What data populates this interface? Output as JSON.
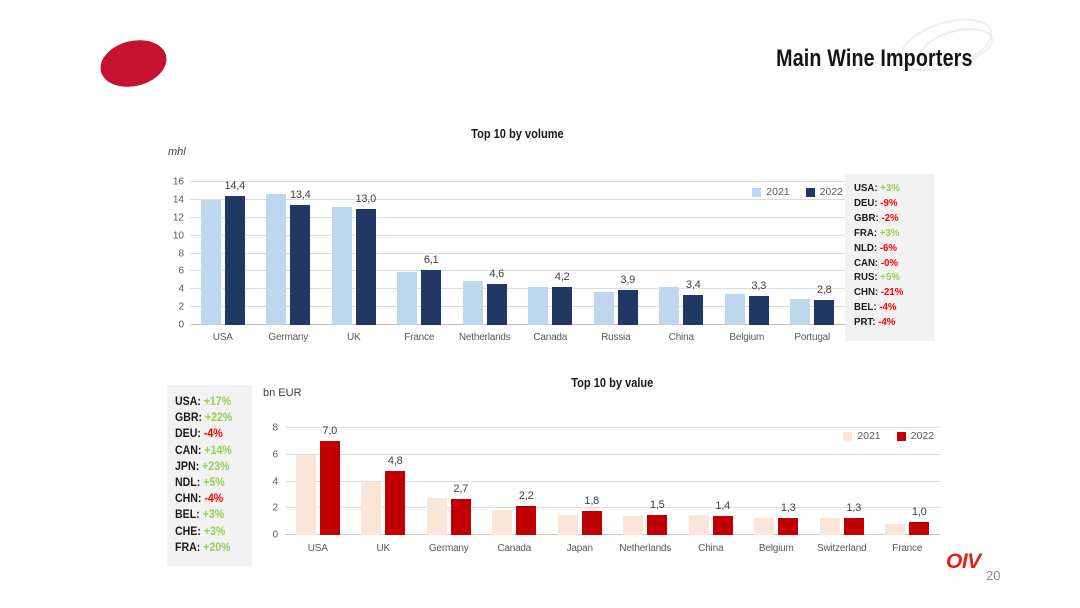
{
  "slide": {
    "title": "Main Wine Importers",
    "logo_text": "OIV",
    "page_number": "20"
  },
  "colors": {
    "ellipse_red": "#C41231",
    "oiv_red": "#E3231B",
    "panel_bg": "#F2F2F2",
    "positive_green": "#92D050",
    "negative_red": "#FF0000",
    "volume_2021": "#BDD7EE",
    "volume_2022": "#1F3864",
    "value_2021": "#FBE5D6",
    "value_2022": "#C00000"
  },
  "chart_data": [
    {
      "type": "bar",
      "title": "Top 10 by volume",
      "unit": "mhl",
      "categories": [
        "USA",
        "Germany",
        "UK",
        "France",
        "Netherlands",
        "Canada",
        "Russia",
        "China",
        "Belgium",
        "Portugal"
      ],
      "series": [
        {
          "name": "2021",
          "color": "#BDD7EE",
          "values": [
            14.0,
            14.7,
            13.2,
            5.9,
            4.9,
            4.2,
            3.7,
            4.3,
            3.5,
            2.9
          ]
        },
        {
          "name": "2022",
          "color": "#1F3864",
          "values": [
            14.4,
            13.4,
            13.0,
            6.1,
            4.6,
            4.2,
            3.9,
            3.4,
            3.3,
            2.8
          ],
          "labels": [
            "14,4",
            "13,4",
            "13,0",
            "6,1",
            "4,6",
            "4,2",
            "3,9",
            "3,4",
            "3,3",
            "2,8"
          ]
        }
      ],
      "ylim": [
        0,
        16
      ],
      "y_ticks": [
        16,
        14,
        12,
        10,
        8,
        6,
        4,
        2,
        0
      ],
      "grid": true,
      "legend_position": "top-right",
      "baseline_color": "#bfbfbf",
      "change_panel": {
        "side": "right",
        "entries": [
          {
            "code": "USA:",
            "pct": "+3%"
          },
          {
            "code": "DEU:",
            "pct": "-9%"
          },
          {
            "code": "GBR:",
            "pct": "-2%"
          },
          {
            "code": "FRA:",
            "pct": "+3%"
          },
          {
            "code": "NLD:",
            "pct": "-6%"
          },
          {
            "code": "CAN:",
            "pct": "-0%"
          },
          {
            "code": "RUS:",
            "pct": "+5%"
          },
          {
            "code": "CHN:",
            "pct": "-21%"
          },
          {
            "code": "BEL:",
            "pct": "-4%"
          },
          {
            "code": "PRT:",
            "pct": "-4%"
          }
        ]
      }
    },
    {
      "type": "bar",
      "title": "Top 10 by value",
      "unit": "bn EUR",
      "categories": [
        "USA",
        "UK",
        "Germany",
        "Canada",
        "Japan",
        "Netherlands",
        "China",
        "Belgium",
        "Switzerland",
        "France"
      ],
      "series": [
        {
          "name": "2021",
          "color": "#FBE5D6",
          "values": [
            6.0,
            4.0,
            2.8,
            1.9,
            1.5,
            1.4,
            1.5,
            1.3,
            1.3,
            0.8
          ]
        },
        {
          "name": "2022",
          "color": "#C00000",
          "values": [
            7.0,
            4.8,
            2.7,
            2.2,
            1.8,
            1.5,
            1.4,
            1.3,
            1.3,
            1.0
          ],
          "labels": [
            "7,0",
            "4,8",
            "2,7",
            "2,2",
            "1,8",
            "1,5",
            "1,4",
            "1,3",
            "1,3",
            "1,0"
          ]
        }
      ],
      "ylim": [
        0,
        8
      ],
      "y_ticks": [
        8,
        6,
        4,
        2,
        0
      ],
      "grid": true,
      "legend_position": "top-right",
      "baseline_color": "#dcc6bc",
      "change_panel": {
        "side": "left",
        "entries": [
          {
            "code": "USA:",
            "pct": "+17%"
          },
          {
            "code": "GBR:",
            "pct": "+22%"
          },
          {
            "code": "DEU:",
            "pct": "-4%"
          },
          {
            "code": "CAN:",
            "pct": "+14%"
          },
          {
            "code": "JPN:",
            "pct": "+23%"
          },
          {
            "code": "NDL:",
            "pct": "+5%"
          },
          {
            "code": "CHN:",
            "pct": "-4%"
          },
          {
            "code": "BEL:",
            "pct": "+3%"
          },
          {
            "code": "CHE:",
            "pct": "+3%"
          },
          {
            "code": "FRA:",
            "pct": "+20%"
          }
        ]
      }
    }
  ]
}
